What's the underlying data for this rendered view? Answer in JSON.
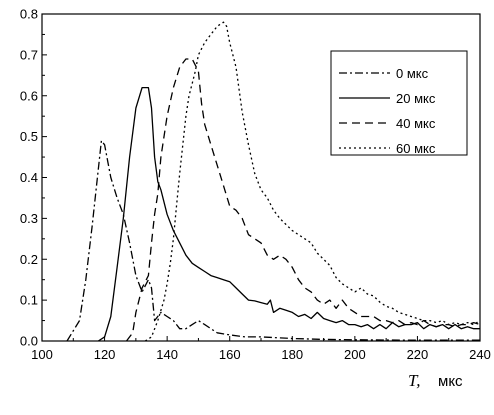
{
  "chart_data": {
    "type": "line",
    "xlabel_var": "T,",
    "xlabel_unit": "мкс",
    "ylabel": "",
    "xlim": [
      100,
      240
    ],
    "ylim": [
      0,
      0.8
    ],
    "x_ticks": [
      100,
      120,
      140,
      160,
      180,
      200,
      220,
      240
    ],
    "y_ticks": [
      0.0,
      0.1,
      0.2,
      0.3,
      0.4,
      0.5,
      0.6,
      0.7,
      0.8
    ],
    "legend_position": "top-right",
    "grid": false,
    "series": [
      {
        "name": "0 мкс",
        "dash": "8,3,2,3",
        "points": [
          [
            108,
            0
          ],
          [
            112,
            0.05
          ],
          [
            114,
            0.15
          ],
          [
            116,
            0.28
          ],
          [
            118,
            0.42
          ],
          [
            119,
            0.49
          ],
          [
            120,
            0.48
          ],
          [
            121,
            0.44
          ],
          [
            122,
            0.4
          ],
          [
            124,
            0.35
          ],
          [
            126,
            0.31
          ],
          [
            128,
            0.24
          ],
          [
            130,
            0.16
          ],
          [
            132,
            0.12
          ],
          [
            134,
            0.15
          ],
          [
            135,
            0.13
          ],
          [
            136,
            0.05
          ],
          [
            138,
            0.07
          ],
          [
            140,
            0.06
          ],
          [
            142,
            0.05
          ],
          [
            144,
            0.03
          ],
          [
            146,
            0.03
          ],
          [
            148,
            0.04
          ],
          [
            150,
            0.05
          ],
          [
            152,
            0.04
          ],
          [
            154,
            0.03
          ],
          [
            156,
            0.02
          ],
          [
            160,
            0.015
          ],
          [
            165,
            0.01
          ],
          [
            170,
            0.01
          ],
          [
            180,
            0.006
          ],
          [
            190,
            0.004
          ],
          [
            200,
            0.003
          ],
          [
            220,
            0.002
          ],
          [
            240,
            0.002
          ]
        ]
      },
      {
        "name": "20 мкс",
        "dash": "",
        "points": [
          [
            118,
            0
          ],
          [
            120,
            0.01
          ],
          [
            122,
            0.06
          ],
          [
            124,
            0.18
          ],
          [
            126,
            0.3
          ],
          [
            128,
            0.45
          ],
          [
            130,
            0.57
          ],
          [
            132,
            0.62
          ],
          [
            134,
            0.62
          ],
          [
            135,
            0.57
          ],
          [
            136,
            0.45
          ],
          [
            137,
            0.39
          ],
          [
            138,
            0.37
          ],
          [
            140,
            0.31
          ],
          [
            142,
            0.27
          ],
          [
            144,
            0.24
          ],
          [
            146,
            0.21
          ],
          [
            148,
            0.19
          ],
          [
            150,
            0.18
          ],
          [
            152,
            0.17
          ],
          [
            154,
            0.16
          ],
          [
            156,
            0.155
          ],
          [
            158,
            0.15
          ],
          [
            160,
            0.145
          ],
          [
            162,
            0.13
          ],
          [
            164,
            0.115
          ],
          [
            166,
            0.1
          ],
          [
            168,
            0.098
          ],
          [
            170,
            0.094
          ],
          [
            172,
            0.09
          ],
          [
            173,
            0.1
          ],
          [
            174,
            0.07
          ],
          [
            176,
            0.08
          ],
          [
            178,
            0.075
          ],
          [
            180,
            0.07
          ],
          [
            182,
            0.06
          ],
          [
            184,
            0.065
          ],
          [
            186,
            0.055
          ],
          [
            188,
            0.07
          ],
          [
            190,
            0.055
          ],
          [
            192,
            0.05
          ],
          [
            194,
            0.045
          ],
          [
            196,
            0.05
          ],
          [
            198,
            0.04
          ],
          [
            200,
            0.04
          ],
          [
            202,
            0.035
          ],
          [
            204,
            0.04
          ],
          [
            206,
            0.03
          ],
          [
            208,
            0.04
          ],
          [
            210,
            0.03
          ],
          [
            212,
            0.045
          ],
          [
            214,
            0.035
          ],
          [
            216,
            0.04
          ],
          [
            218,
            0.04
          ],
          [
            220,
            0.045
          ],
          [
            222,
            0.03
          ],
          [
            224,
            0.04
          ],
          [
            226,
            0.035
          ],
          [
            228,
            0.04
          ],
          [
            230,
            0.03
          ],
          [
            232,
            0.04
          ],
          [
            234,
            0.03
          ],
          [
            236,
            0.035
          ],
          [
            238,
            0.03
          ],
          [
            240,
            0.03
          ]
        ]
      },
      {
        "name": "40 мкс",
        "dash": "8,5",
        "points": [
          [
            127,
            0
          ],
          [
            129,
            0.02
          ],
          [
            130,
            0.07
          ],
          [
            132,
            0.13
          ],
          [
            134,
            0.16
          ],
          [
            135,
            0.24
          ],
          [
            136,
            0.31
          ],
          [
            137,
            0.36
          ],
          [
            138,
            0.45
          ],
          [
            139,
            0.5
          ],
          [
            140,
            0.55
          ],
          [
            142,
            0.62
          ],
          [
            144,
            0.67
          ],
          [
            146,
            0.69
          ],
          [
            148,
            0.69
          ],
          [
            150,
            0.66
          ],
          [
            151,
            0.58
          ],
          [
            152,
            0.53
          ],
          [
            154,
            0.48
          ],
          [
            156,
            0.43
          ],
          [
            158,
            0.38
          ],
          [
            160,
            0.33
          ],
          [
            162,
            0.32
          ],
          [
            164,
            0.3
          ],
          [
            166,
            0.26
          ],
          [
            168,
            0.25
          ],
          [
            170,
            0.24
          ],
          [
            172,
            0.21
          ],
          [
            174,
            0.2
          ],
          [
            176,
            0.21
          ],
          [
            178,
            0.2
          ],
          [
            180,
            0.18
          ],
          [
            182,
            0.15
          ],
          [
            184,
            0.13
          ],
          [
            186,
            0.12
          ],
          [
            188,
            0.1
          ],
          [
            190,
            0.09
          ],
          [
            192,
            0.1
          ],
          [
            194,
            0.08
          ],
          [
            196,
            0.1
          ],
          [
            198,
            0.08
          ],
          [
            200,
            0.07
          ],
          [
            202,
            0.06
          ],
          [
            204,
            0.06
          ],
          [
            206,
            0.06
          ],
          [
            208,
            0.05
          ],
          [
            210,
            0.05
          ],
          [
            212,
            0.045
          ],
          [
            214,
            0.05
          ],
          [
            216,
            0.04
          ],
          [
            218,
            0.045
          ],
          [
            220,
            0.04
          ],
          [
            222,
            0.05
          ],
          [
            224,
            0.04
          ],
          [
            226,
            0.035
          ],
          [
            228,
            0.04
          ],
          [
            230,
            0.04
          ],
          [
            232,
            0.035
          ],
          [
            234,
            0.04
          ],
          [
            236,
            0.04
          ],
          [
            238,
            0.045
          ],
          [
            240,
            0.04
          ]
        ]
      },
      {
        "name": "60 мкс",
        "dash": "2,3",
        "points": [
          [
            133,
            0
          ],
          [
            135,
            0.01
          ],
          [
            137,
            0.05
          ],
          [
            139,
            0.1
          ],
          [
            140,
            0.14
          ],
          [
            141,
            0.19
          ],
          [
            142,
            0.25
          ],
          [
            143,
            0.33
          ],
          [
            144,
            0.41
          ],
          [
            145,
            0.48
          ],
          [
            146,
            0.55
          ],
          [
            147,
            0.6
          ],
          [
            148,
            0.63
          ],
          [
            149,
            0.66
          ],
          [
            150,
            0.7
          ],
          [
            152,
            0.73
          ],
          [
            154,
            0.75
          ],
          [
            156,
            0.77
          ],
          [
            158,
            0.78
          ],
          [
            159,
            0.77
          ],
          [
            160,
            0.73
          ],
          [
            162,
            0.67
          ],
          [
            164,
            0.56
          ],
          [
            166,
            0.48
          ],
          [
            168,
            0.41
          ],
          [
            170,
            0.37
          ],
          [
            172,
            0.35
          ],
          [
            174,
            0.32
          ],
          [
            176,
            0.3
          ],
          [
            178,
            0.285
          ],
          [
            180,
            0.27
          ],
          [
            182,
            0.26
          ],
          [
            184,
            0.25
          ],
          [
            186,
            0.24
          ],
          [
            188,
            0.215
          ],
          [
            190,
            0.2
          ],
          [
            192,
            0.185
          ],
          [
            194,
            0.155
          ],
          [
            196,
            0.14
          ],
          [
            198,
            0.13
          ],
          [
            200,
            0.12
          ],
          [
            202,
            0.13
          ],
          [
            204,
            0.115
          ],
          [
            206,
            0.11
          ],
          [
            208,
            0.095
          ],
          [
            210,
            0.085
          ],
          [
            212,
            0.08
          ],
          [
            214,
            0.07
          ],
          [
            216,
            0.065
          ],
          [
            218,
            0.06
          ],
          [
            220,
            0.055
          ],
          [
            222,
            0.05
          ],
          [
            224,
            0.05
          ],
          [
            226,
            0.045
          ],
          [
            228,
            0.05
          ],
          [
            230,
            0.04
          ],
          [
            232,
            0.045
          ],
          [
            234,
            0.04
          ],
          [
            236,
            0.045
          ],
          [
            238,
            0.04
          ],
          [
            240,
            0.05
          ]
        ]
      }
    ]
  }
}
